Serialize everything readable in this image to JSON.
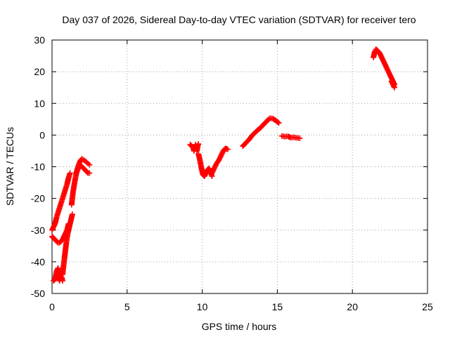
{
  "chart_data": {
    "type": "scatter",
    "title": "Day 037 of 2026, Sidereal Day-to-day VTEC variation (SDTVAR) for receiver tero",
    "xlabel": "GPS time / hours",
    "ylabel": "SDTVAR / TECUs",
    "xlim": [
      0,
      25
    ],
    "ylim": [
      -50,
      30
    ],
    "xticks": [
      0,
      5,
      10,
      15,
      20,
      25
    ],
    "yticks": [
      -50,
      -40,
      -30,
      -20,
      -10,
      0,
      10,
      20,
      30
    ],
    "grid": true,
    "marker": "plus",
    "color": "#ff0000",
    "segments": [
      {
        "x": [
          0.0,
          0.1,
          0.2,
          0.3,
          0.4,
          0.5,
          0.6,
          0.7,
          0.8,
          0.9,
          1.0,
          1.05,
          1.1
        ],
        "y": [
          -32,
          -32.5,
          -33,
          -33.5,
          -34,
          -34,
          -33.5,
          -33,
          -32,
          -31,
          -30,
          -29,
          -28
        ]
      },
      {
        "x": [
          0.0,
          0.1,
          0.2,
          0.3,
          0.4,
          0.5,
          0.6,
          0.7,
          0.8,
          0.9,
          1.0,
          1.1,
          1.2
        ],
        "y": [
          -30,
          -29,
          -28,
          -26,
          -24.5,
          -23,
          -21.5,
          -20,
          -18.5,
          -17,
          -15.5,
          -13.5,
          -12
        ]
      },
      {
        "x": [
          0.1,
          0.2,
          0.3,
          0.4,
          0.5,
          0.6,
          0.65,
          0.7
        ],
        "y": [
          -46,
          -45.5,
          -43,
          -42,
          -46,
          -44.5,
          -45,
          -46
        ]
      },
      {
        "x": [
          0.7,
          0.75,
          0.8,
          0.85,
          0.9,
          0.95,
          1.0,
          1.05,
          1.1,
          1.15,
          1.2,
          1.25,
          1.3,
          1.35
        ],
        "y": [
          -44,
          -42,
          -40,
          -38,
          -36,
          -34,
          -32.5,
          -31,
          -30,
          -29,
          -28,
          -27,
          -26,
          -25
        ]
      },
      {
        "x": [
          1.3,
          1.4,
          1.5,
          1.6,
          1.7,
          1.8,
          1.9,
          2.0,
          2.1,
          2.2,
          2.3,
          2.4,
          2.5
        ],
        "y": [
          -22,
          -18,
          -15,
          -12.5,
          -10.5,
          -9,
          -8,
          -7.5,
          -7.8,
          -8.2,
          -8.6,
          -9,
          -9.4
        ]
      },
      {
        "x": [
          1.6,
          1.7,
          1.8,
          1.9,
          2.0,
          2.1,
          2.2,
          2.3,
          2.4,
          2.5
        ],
        "y": [
          -12,
          -11,
          -10,
          -9.5,
          -10,
          -10.5,
          -11,
          -11.5,
          -12,
          -12
        ]
      },
      {
        "x": [
          9.2,
          9.3,
          9.4,
          9.45,
          9.5,
          9.55,
          9.6,
          9.65,
          9.7,
          9.75
        ],
        "y": [
          -3,
          -3.5,
          -4,
          -5,
          -4.5,
          -3,
          -4,
          -5,
          -3.5,
          -2.8
        ]
      },
      {
        "x": [
          9.75,
          9.85,
          9.95,
          10.05,
          10.15,
          10.25,
          10.35,
          10.45,
          10.55,
          10.65
        ],
        "y": [
          -6,
          -8,
          -10.5,
          -12.5,
          -13,
          -12,
          -11,
          -10.5,
          -11.5,
          -13
        ]
      },
      {
        "x": [
          10.65,
          10.8,
          10.95,
          11.1,
          11.25,
          11.4,
          11.55,
          11.7
        ],
        "y": [
          -12,
          -10.5,
          -9,
          -8,
          -6.5,
          -5,
          -4.2,
          -4.5
        ]
      },
      {
        "x": [
          12.7,
          12.9,
          13.1,
          13.3,
          13.5,
          13.7,
          13.9,
          14.1,
          14.3,
          14.5,
          14.7,
          14.9,
          15.1
        ],
        "y": [
          -3.5,
          -2.5,
          -1.5,
          -0.3,
          0.7,
          1.6,
          2.4,
          3.4,
          4.4,
          5.3,
          5.2,
          4.6,
          3.8
        ]
      },
      {
        "x": [
          15.3,
          15.5,
          15.7,
          15.9,
          16.1,
          16.3,
          16.5
        ],
        "y": [
          -0.3,
          -0.5,
          -0.4,
          -0.8,
          -0.7,
          -0.9,
          -1
        ]
      },
      {
        "x": [
          21.4,
          21.45,
          21.5,
          21.55,
          21.6,
          21.7,
          21.8,
          21.9,
          22.0,
          22.1,
          22.2,
          22.3,
          22.4,
          22.5,
          22.6,
          22.7,
          22.8
        ],
        "y": [
          24.5,
          25.5,
          26.5,
          27,
          27,
          26.5,
          26,
          25,
          24,
          23,
          22,
          21,
          20,
          19,
          18,
          17,
          16
        ]
      },
      {
        "x": [
          22.6,
          22.7,
          22.8
        ],
        "y": [
          17,
          16,
          15
        ]
      }
    ]
  }
}
